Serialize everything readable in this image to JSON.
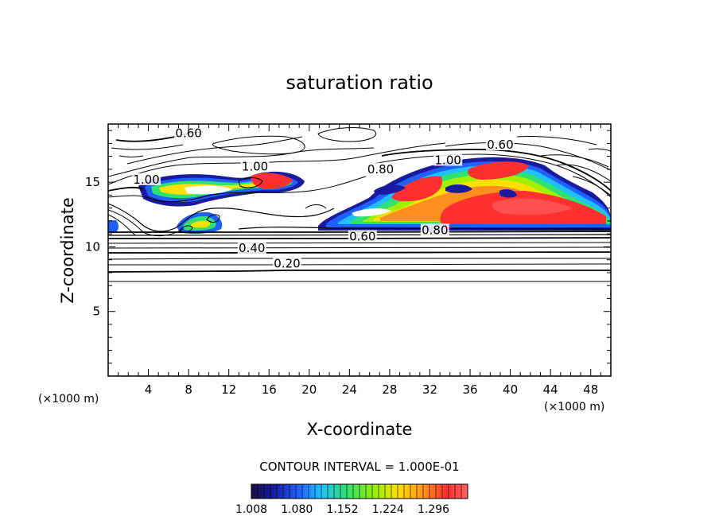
{
  "chart_data": {
    "type": "heatmap",
    "title": "saturation ratio",
    "xlabel": "X-coordinate",
    "ylabel": "Z-coordinate",
    "x_unit_label": "(×1000 m)",
    "xlim": [
      0,
      50
    ],
    "ylim": [
      0,
      19.5
    ],
    "x_ticks": [
      4,
      8,
      12,
      16,
      20,
      24,
      28,
      32,
      36,
      40,
      44,
      48
    ],
    "y_ticks": [
      5,
      10,
      15
    ],
    "contour_interval_text": "CONTOUR INTERVAL = 1.000E-01",
    "colorbar": {
      "min": 1.008,
      "max": 1.35,
      "labels": [
        "1.008",
        "1.080",
        "1.152",
        "1.224",
        "1.296"
      ],
      "colors": [
        "#1a1040",
        "#1a1aa0",
        "#2060ff",
        "#20c0ff",
        "#30e070",
        "#a0f000",
        "#ffe000",
        "#ff9020",
        "#ff3030",
        "#ff6060"
      ]
    },
    "contour_labels": [
      {
        "text": "0.20",
        "x": 17.8,
        "z": 8.7
      },
      {
        "text": "0.40",
        "x": 14.3,
        "z": 9.9
      },
      {
        "text": "0.60",
        "x": 25.3,
        "z": 10.8
      },
      {
        "text": "0.80",
        "x": 32.5,
        "z": 11.3
      },
      {
        "text": "1.00",
        "x": 14.6,
        "z": 16.2
      },
      {
        "text": "1.00",
        "x": 33.8,
        "z": 16.7
      },
      {
        "text": "0.60",
        "x": 8.0,
        "z": 18.8
      },
      {
        "text": "0.60",
        "x": 39.0,
        "z": 17.9
      },
      {
        "text": "0.80",
        "x": 27.1,
        "z": 16.0
      },
      {
        "text": "1.00",
        "x": 3.8,
        "z": 15.2
      }
    ],
    "regions": [
      {
        "level": "supersaturated",
        "x_range": [
          3.0,
          19.0
        ],
        "z_range": [
          14.2,
          16.8
        ]
      },
      {
        "level": "supersaturated",
        "x_range": [
          21.5,
          50.0
        ],
        "z_range": [
          11.4,
          17.3
        ]
      },
      {
        "level": "supersaturated",
        "x_range": [
          6.5,
          11.5
        ],
        "z_range": [
          11.0,
          13.0
        ]
      }
    ]
  }
}
